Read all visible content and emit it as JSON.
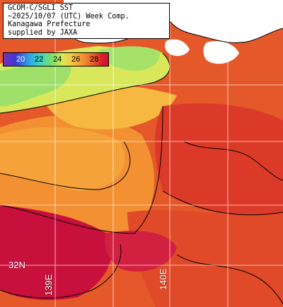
{
  "title": {
    "lines": [
      "GCOM-C/SGLI SST",
      "~2025/10/07 (UTC) Week Comp.",
      "Kanagawa Prefecture",
      "supplied by JAXA"
    ]
  },
  "colorbar": {
    "ticks": [
      "20",
      "22",
      "24",
      "26",
      "28"
    ],
    "unit": ""
  },
  "grid_labels": {
    "lat": "32N",
    "lon_west": "139E",
    "lon_east": "140E"
  },
  "colors": {
    "land": "#ffffff",
    "coast": "#000000",
    "grid": "#ffffff",
    "sst_cold": "#7be06a",
    "sst_cool": "#d8e85a",
    "sst_mild": "#f6c240",
    "sst_warm": "#f29032",
    "sst_hot": "#ea5a2a",
    "sst_hotter": "#d81e28",
    "sst_hottest": "#c8103c"
  }
}
